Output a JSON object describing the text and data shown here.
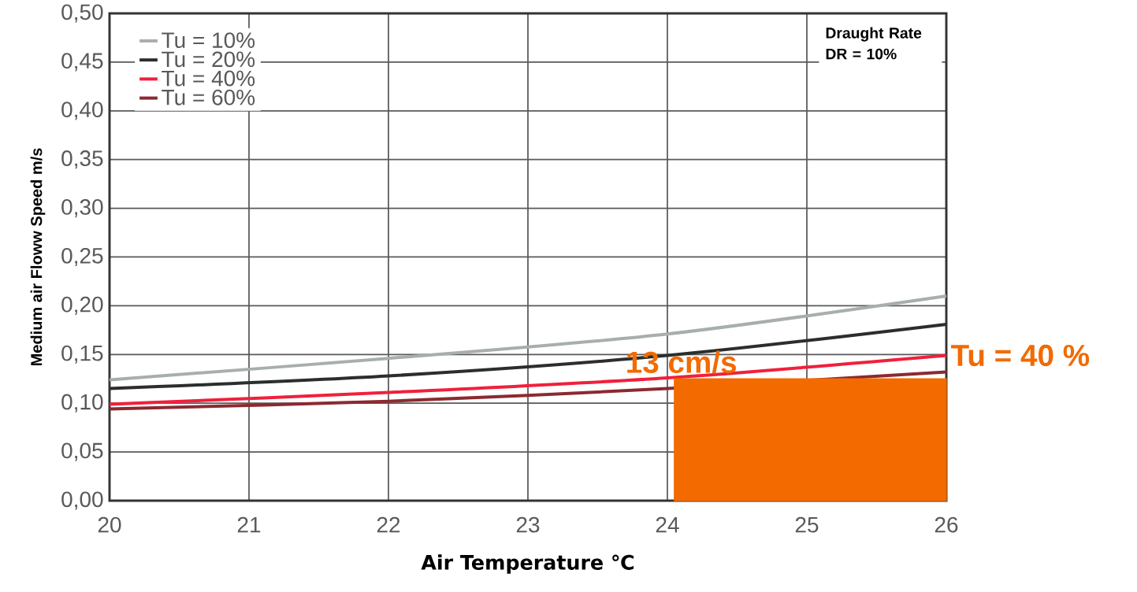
{
  "chart_data": {
    "type": "line",
    "xlabel": "Air Temperature ℃",
    "ylabel": "Medium air Floww Speed  m/s",
    "x": [
      20,
      22,
      24,
      26
    ],
    "series": [
      {
        "name": "Tu = 10%",
        "color": "#a8aeac",
        "values": [
          0.124,
          0.146,
          0.171,
          0.21
        ]
      },
      {
        "name": "Tu = 20%",
        "color": "#2a2e2c",
        "values": [
          0.115,
          0.128,
          0.149,
          0.181
        ]
      },
      {
        "name": "Tu = 40%",
        "color": "#f0203c",
        "values": [
          0.099,
          0.111,
          0.126,
          0.149
        ]
      },
      {
        "name": "Tu = 60%",
        "color": "#8b2a30",
        "values": [
          0.094,
          0.102,
          0.115,
          0.132
        ]
      },
      {
        "type": "area",
        "color": "#f26a00",
        "x": [
          24.05,
          26
        ],
        "values": [
          0.125,
          0.125
        ]
      }
    ],
    "xlim": [
      20,
      26
    ],
    "xticks": [
      20,
      21,
      22,
      23,
      24,
      25,
      26
    ],
    "ylim": [
      0,
      0.5
    ],
    "yticks": [
      {
        "value": 0,
        "label": "0,00"
      },
      {
        "value": 0.05,
        "label": "0,05"
      },
      {
        "value": 0.1,
        "label": "0,10"
      },
      {
        "value": 0.15,
        "label": "0,15"
      },
      {
        "value": 0.2,
        "label": "0,20"
      },
      {
        "value": 0.25,
        "label": "0,25"
      },
      {
        "value": 0.3,
        "label": "0,30"
      },
      {
        "value": 0.35,
        "label": "0,35"
      },
      {
        "value": 0.4,
        "label": "0,40"
      },
      {
        "value": 0.45,
        "label": "0,45"
      },
      {
        "value": 0.5,
        "label": "0,50"
      }
    ],
    "annotations": [
      "Draught Rate DR = 10%",
      {
        "text": "13 cm/s",
        "x": 24.1,
        "y": 0.126
      },
      {
        "text": "Tu = 40 %",
        "x": 26,
        "y": 0.149
      }
    ],
    "grid": true,
    "legend": "top left",
    "marker": "none",
    "line_style": "solid"
  }
}
